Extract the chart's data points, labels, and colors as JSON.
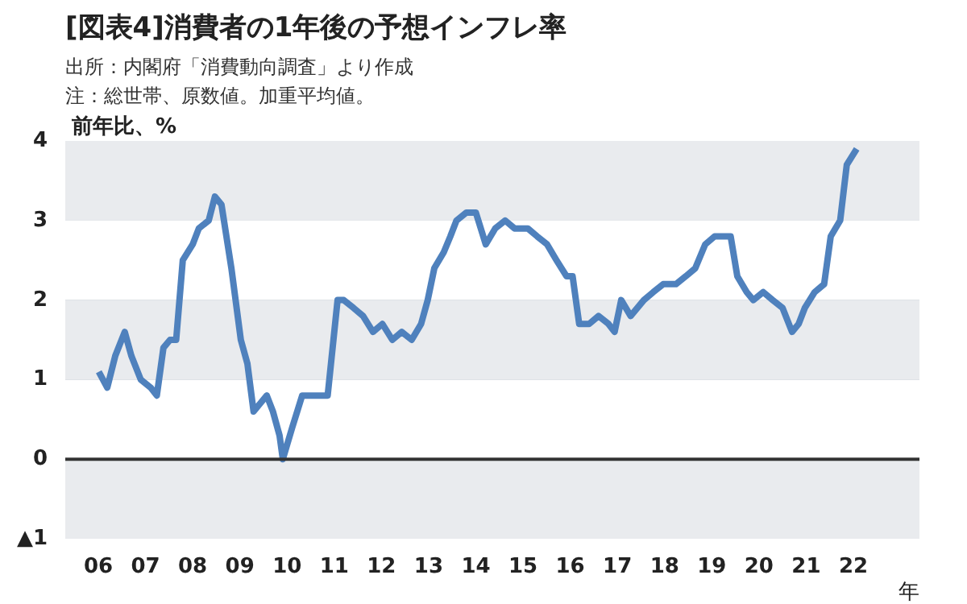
{
  "chart_data": {
    "type": "line",
    "title": "[図表4]消費者の1年後の予想インフレ率",
    "annotations": [
      "出所：内閣府「消費動向調査」より作成",
      "注：総世帯、原数値。加重平均値。"
    ],
    "ylabel": "前年比、%",
    "xlabel": "年",
    "x": [
      2006.01,
      2006.19,
      2006.36,
      2006.56,
      2006.7,
      2006.9,
      2007.11,
      2007.24,
      2007.38,
      2007.52,
      2007.65,
      2007.79,
      2008.0,
      2008.13,
      2008.34,
      2008.47,
      2008.61,
      2008.82,
      2009.02,
      2009.16,
      2009.29,
      2009.43,
      2009.57,
      2009.7,
      2009.84,
      2009.91,
      2010.11,
      2010.32,
      2010.52,
      2010.73,
      2010.86,
      2011.07,
      2011.2,
      2011.41,
      2011.61,
      2011.82,
      2012.02,
      2012.23,
      2012.43,
      2012.64,
      2012.84,
      2012.98,
      2013.12,
      2013.32,
      2013.46,
      2013.59,
      2013.8,
      2014.0,
      2014.21,
      2014.41,
      2014.62,
      2014.82,
      2015.03,
      2015.1,
      2015.3,
      2015.51,
      2015.71,
      2015.92,
      2016.05,
      2016.19,
      2016.4,
      2016.6,
      2016.81,
      2016.94,
      2017.08,
      2017.28,
      2017.56,
      2017.76,
      2017.97,
      2018.24,
      2018.45,
      2018.65,
      2018.86,
      2019.06,
      2019.27,
      2019.4,
      2019.54,
      2019.74,
      2019.88,
      2020.09,
      2020.29,
      2020.5,
      2020.7,
      2020.84,
      2020.97,
      2021.18,
      2021.38,
      2021.52,
      2021.72,
      2021.86,
      2022.07
    ],
    "series": [
      {
        "color": "#4f81bd",
        "values": [
          1.1,
          0.9,
          1.3,
          1.6,
          1.3,
          1.0,
          0.9,
          0.8,
          1.4,
          1.5,
          1.5,
          2.5,
          2.7,
          2.9,
          3.0,
          3.3,
          3.2,
          2.4,
          1.5,
          1.2,
          0.6,
          0.7,
          0.8,
          0.6,
          0.3,
          0.0,
          0.4,
          0.8,
          0.8,
          0.8,
          0.8,
          2.0,
          2.0,
          1.9,
          1.8,
          1.6,
          1.7,
          1.5,
          1.6,
          1.5,
          1.7,
          2.0,
          2.4,
          2.6,
          2.8,
          3.0,
          3.1,
          3.1,
          2.7,
          2.9,
          3.0,
          2.9,
          2.9,
          2.9,
          2.8,
          2.7,
          2.5,
          2.3,
          2.3,
          1.7,
          1.7,
          1.8,
          1.7,
          1.6,
          2.0,
          1.8,
          2.0,
          2.1,
          2.2,
          2.2,
          2.3,
          2.4,
          2.7,
          2.8,
          2.8,
          2.8,
          2.3,
          2.1,
          2.0,
          2.1,
          2.0,
          1.9,
          1.6,
          1.7,
          1.9,
          2.1,
          2.2,
          2.8,
          3.0,
          3.7,
          3.9
        ]
      }
    ],
    "xlim": [
      2005.3,
      2023.4
    ],
    "xticks": [
      {
        "value": 2006,
        "label": "06"
      },
      {
        "value": 2007,
        "label": "07"
      },
      {
        "value": 2008,
        "label": "08"
      },
      {
        "value": 2009,
        "label": "09"
      },
      {
        "value": 2010,
        "label": "10"
      },
      {
        "value": 2011,
        "label": "11"
      },
      {
        "value": 2012,
        "label": "12"
      },
      {
        "value": 2013,
        "label": "13"
      },
      {
        "value": 2014,
        "label": "14"
      },
      {
        "value": 2015,
        "label": "15"
      },
      {
        "value": 2016,
        "label": "16"
      },
      {
        "value": 2017,
        "label": "17"
      },
      {
        "value": 2018,
        "label": "18"
      },
      {
        "value": 2019,
        "label": "19"
      },
      {
        "value": 2020,
        "label": "20"
      },
      {
        "value": 2021,
        "label": "21"
      },
      {
        "value": 2022,
        "label": "22"
      }
    ],
    "ylim": [
      -1,
      4
    ],
    "yticks": [
      {
        "value": -1,
        "label": "▲1"
      },
      0,
      1,
      2,
      3,
      4
    ],
    "grid": "y",
    "ref_lines": [
      {
        "axis": "y",
        "value": 0,
        "color": "#333333"
      }
    ],
    "marker": "none",
    "line_style": "solid"
  }
}
